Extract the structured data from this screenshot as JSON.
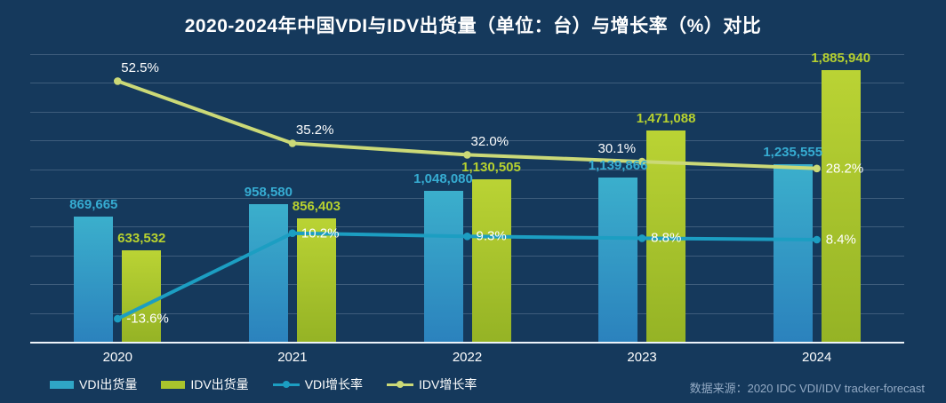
{
  "source": "数据来源：2020 IDC VDI/IDV tracker-forecast",
  "colors": {
    "background": "#15395C",
    "grid": "#57748F",
    "axis_line": "#EDF3F9",
    "title_text": "#FFFFFF",
    "tick_text": "#FFFFFF",
    "growth_label_text": "#FFFFFF",
    "source_text": "#93AAC4"
  },
  "chart_data": {
    "type": "bar+line combo",
    "title": "2020-2024年中国VDI与IDV出货量（单位：台）与增长率（%）对比",
    "categories": [
      "2020",
      "2021",
      "2022",
      "2023",
      "2024"
    ],
    "series": [
      {
        "name": "VDI出货量",
        "type": "bar",
        "axis": "left",
        "color": "#2FA6C6",
        "gradient": [
          "#3BAFCC",
          "#2B82BD"
        ],
        "label_color": "#36ACD2",
        "values": [
          869665,
          958580,
          1048080,
          1139866,
          1235555
        ],
        "labels": [
          "869,665",
          "958,580",
          "1,048,080",
          "1,139,866",
          "1,235,555"
        ]
      },
      {
        "name": "IDV出货量",
        "type": "bar",
        "axis": "left",
        "color": "#A9C42C",
        "gradient": [
          "#BAD334",
          "#95B325"
        ],
        "label_color": "#B7D12F",
        "values": [
          633532,
          856403,
          1130505,
          1471088,
          1885940
        ],
        "labels": [
          "633,532",
          "856,403",
          "1,130,505",
          "1,471,088",
          "1,885,940"
        ]
      },
      {
        "name": "VDI增长率",
        "type": "line",
        "axis": "right",
        "color": "#1C9EC2",
        "values": [
          -13.6,
          10.2,
          9.3,
          8.8,
          8.4
        ],
        "labels": [
          "-13.6%",
          "10.2%",
          "9.3%",
          "8.8%",
          "8.4%"
        ]
      },
      {
        "name": "IDV增长率",
        "type": "line",
        "axis": "right",
        "color": "#CBD977",
        "values": [
          52.5,
          35.2,
          32.0,
          30.1,
          28.2
        ],
        "labels": [
          "52.5%",
          "35.2%",
          "32.0%",
          "30.1%",
          "28.2%"
        ]
      }
    ],
    "axes": {
      "left": {
        "min": 0,
        "max": 2000000,
        "grid_steps": 10,
        "visible": false
      },
      "right": {
        "min": -20,
        "max": 60,
        "visible": false
      }
    },
    "grid": true,
    "legend_position": "bottom-left"
  }
}
